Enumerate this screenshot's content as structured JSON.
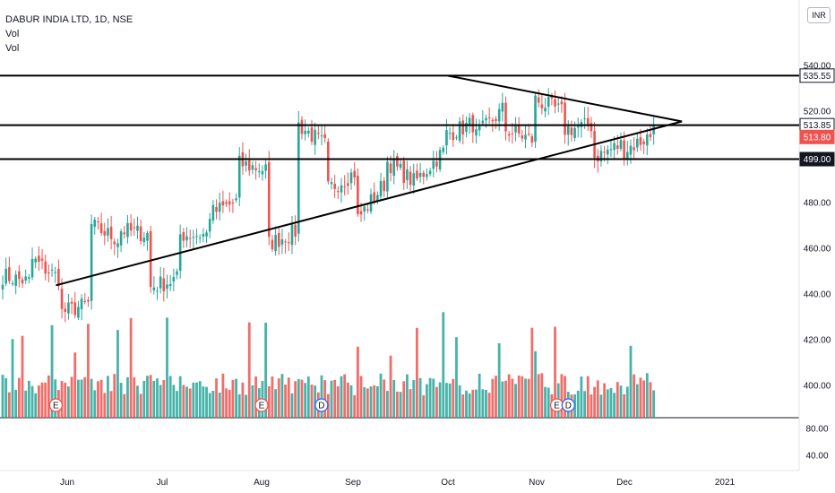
{
  "header": {
    "symbol": "DABUR INDIA LTD, 1D, NSE",
    "indicators": [
      "Vol",
      "Vol"
    ],
    "currency": "INR"
  },
  "colors": {
    "up": "#26a69a",
    "down": "#ef5350",
    "line": "#000000",
    "label_bg": "#ffffff",
    "last_price_bg": "#ef5350"
  },
  "chart_data": {
    "type": "candlestick",
    "x_ticks": [
      "Jun",
      "Jul",
      "Aug",
      "Sep",
      "Oct",
      "Nov",
      "Dec",
      "2021"
    ],
    "y_ticks": [
      "540.00",
      "520.00",
      "480.00",
      "460.00",
      "440.00",
      "420.00",
      "400.00"
    ],
    "volume_ticks": [
      "80.00",
      "40.00"
    ],
    "price_labels": [
      {
        "text": "535.55",
        "value": 535.55,
        "style": "box"
      },
      {
        "text": "513.85",
        "value": 513.85,
        "style": "box"
      },
      {
        "text": "513.80",
        "value": 513.8,
        "style": "last"
      },
      {
        "text": "499.00",
        "value": 499.0,
        "style": "inverse"
      }
    ],
    "horizontal_levels": [
      535.55,
      513.85,
      499.0
    ],
    "triangle": {
      "upper": {
        "from": [
          "Oct 1",
          535.5
        ],
        "to": [
          "Dec 20",
          515.5
        ]
      },
      "lower": {
        "from": [
          "May 28",
          443.8
        ],
        "to": [
          "Dec 20",
          515.5
        ]
      }
    },
    "event_markers": [
      {
        "text": "E",
        "when": "May 28"
      },
      {
        "text": "E",
        "when": "Aug 1"
      },
      {
        "text": "D",
        "when": "Aug 21"
      },
      {
        "text": "E",
        "when": "Nov 8"
      },
      {
        "text": "D",
        "when": "Nov 12"
      }
    ],
    "close_anchors": [
      [
        448,
        445
      ],
      [
        455,
        446
      ],
      [
        432,
        436
      ],
      [
        470,
        463
      ],
      [
        468,
        466
      ],
      [
        443,
        447
      ],
      [
        466,
        466
      ],
      [
        475,
        481
      ],
      [
        497,
        494
      ],
      [
        462,
        468
      ],
      [
        514,
        504
      ],
      [
        486,
        494
      ],
      [
        473,
        490
      ],
      [
        498,
        488
      ],
      [
        490,
        504
      ],
      [
        510,
        515
      ],
      [
        509,
        522
      ],
      [
        512,
        507
      ],
      [
        525,
        519
      ],
      [
        512,
        514
      ],
      [
        500,
        506
      ],
      [
        503,
        510
      ],
      [
        508,
        513.8
      ]
    ],
    "anchor_spacing_bars": 9,
    "bar_count": 199,
    "last_close": 513.8
  }
}
